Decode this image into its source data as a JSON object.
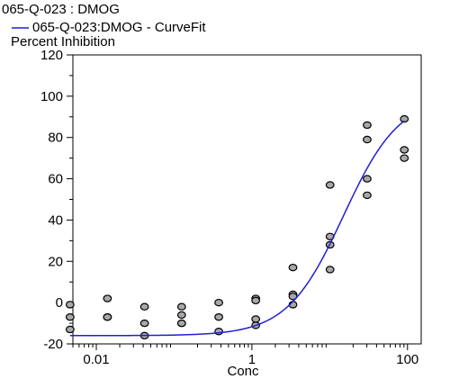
{
  "chart_data": {
    "type": "scatter",
    "title": "065-Q-023  : DMOG",
    "legend": {
      "placement": "top-left",
      "entries": [
        "065-Q-023:DMOG - CurveFit"
      ],
      "line_color": "#1f1fd6"
    },
    "ylabel": "Percent Inhibition",
    "xlabel": "Conc",
    "x_scale": "log",
    "xlim": [
      0.005,
      150
    ],
    "ylim": [
      -20,
      120
    ],
    "x_ticks": [
      0.01,
      1,
      100
    ],
    "x_tick_labels": [
      "0.01",
      "1",
      "100"
    ],
    "y_ticks": [
      -20,
      0,
      20,
      40,
      60,
      80,
      100,
      120
    ],
    "y_tick_labels": [
      "-20",
      "0",
      "20",
      "40",
      "60",
      "80",
      "100",
      "120"
    ],
    "point_color": "#a8a8a8",
    "series": [
      {
        "kind": "points",
        "points": [
          [
            0.0046,
            -1
          ],
          [
            0.0046,
            -7
          ],
          [
            0.0046,
            -13
          ],
          [
            0.0139,
            2
          ],
          [
            0.0139,
            -7
          ],
          [
            0.0139,
            -7
          ],
          [
            0.0417,
            -2
          ],
          [
            0.0417,
            -10
          ],
          [
            0.0417,
            -16
          ],
          [
            0.125,
            -2
          ],
          [
            0.125,
            -6
          ],
          [
            0.125,
            -10
          ],
          [
            0.125,
            -10
          ],
          [
            0.375,
            0
          ],
          [
            0.375,
            -7
          ],
          [
            0.375,
            -14
          ],
          [
            1.12,
            2
          ],
          [
            1.12,
            1
          ],
          [
            1.12,
            -8
          ],
          [
            1.12,
            -11
          ],
          [
            3.37,
            17
          ],
          [
            3.37,
            4
          ],
          [
            3.37,
            3
          ],
          [
            3.37,
            -1
          ],
          [
            10.1,
            57
          ],
          [
            10.1,
            32
          ],
          [
            10.1,
            28
          ],
          [
            10.1,
            16
          ],
          [
            30.3,
            86
          ],
          [
            30.3,
            79
          ],
          [
            30.3,
            60
          ],
          [
            30.3,
            52
          ],
          [
            91,
            89
          ],
          [
            91,
            74
          ],
          [
            91,
            70
          ]
        ]
      },
      {
        "kind": "curve",
        "name": "065-Q-023:DMOG - CurveFit",
        "color": "#1f1fd6",
        "fit": {
          "bottom": -16,
          "top": 100,
          "ec50": 15,
          "hill": 1.2
        },
        "x_range": [
          0.0046,
          91
        ]
      }
    ]
  }
}
